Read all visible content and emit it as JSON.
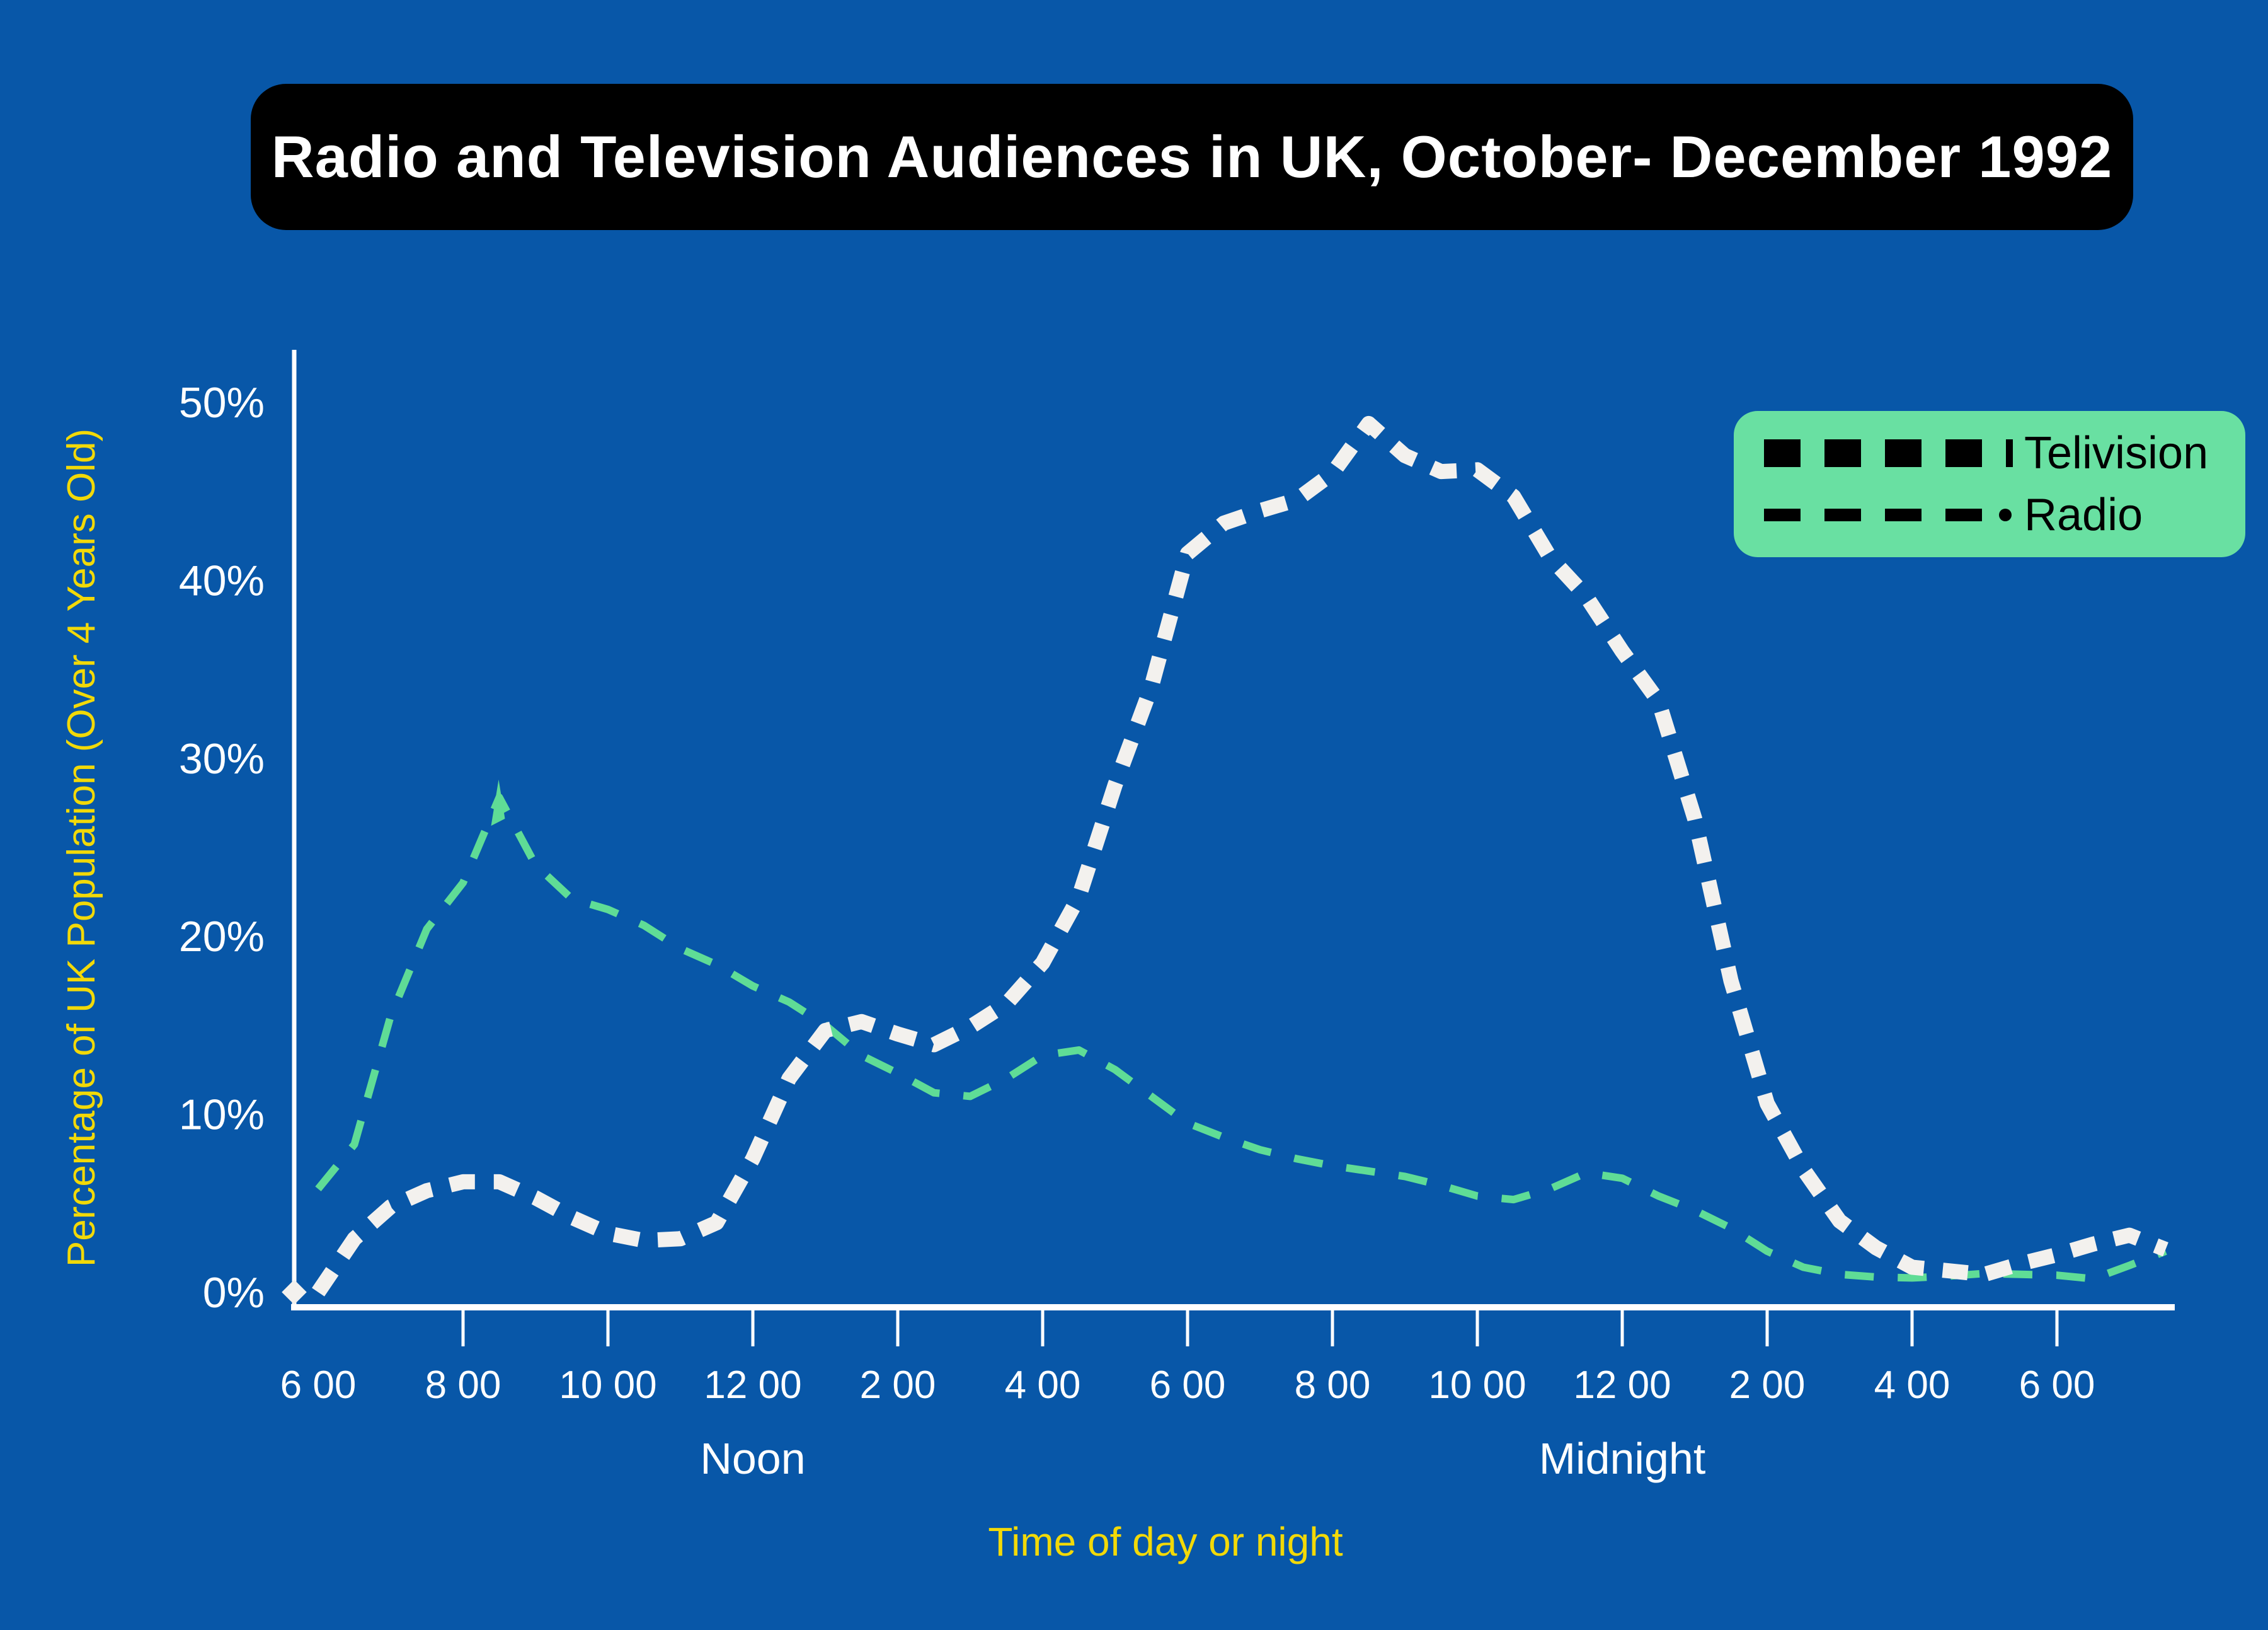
{
  "title": "Radio and Television Audiences in UK, October- December 1992",
  "colors": {
    "background": "#0857A8",
    "title_bar": "#000000",
    "title_text": "#FFFFFF",
    "legend_box": "#69E0A2",
    "legend_text": "#000000",
    "axis": "#FFFFFF",
    "axis_tick_text": "#FFFFFF",
    "axis_title_text": "#F2D908",
    "television_line": "#F3F1EE",
    "radio_line": "#5FDC96"
  },
  "legend": {
    "television_label": "Telivision",
    "radio_label": "Radio"
  },
  "y_axis": {
    "title": "Percentage of UK Population (Over 4 Years Old)",
    "ticks": [
      {
        "label": "50%",
        "value": 50
      },
      {
        "label": "40%",
        "value": 40
      },
      {
        "label": "30%",
        "value": 30
      },
      {
        "label": "20%",
        "value": 20
      },
      {
        "label": "10%",
        "value": 10
      },
      {
        "label": "0%",
        "value": 0
      }
    ]
  },
  "x_axis": {
    "title": "Time of day or night",
    "noon_label": "Noon",
    "midnight_label": "Midnight",
    "tick_labels": [
      "6 00",
      "8 00",
      "10 00",
      "12 00",
      "2 00",
      "4 00",
      "6 00",
      "8 00",
      "10 00",
      "12 00",
      "2 00",
      "4 00",
      "6 00"
    ],
    "tick_hours": [
      6,
      8,
      10,
      12,
      14,
      16,
      18,
      20,
      22,
      24,
      26,
      28,
      30
    ]
  },
  "chart_data": {
    "type": "line",
    "title": "Radio and Television Audiences in UK, October- December 1992",
    "xlabel": "Time of day or night",
    "ylabel": "Percentage of UK Population (Over 4 Years Old)",
    "ylim": [
      0,
      52
    ],
    "x_hours_start_6am_to_next_morning": [
      6,
      6.5,
      7,
      7.5,
      8,
      8.5,
      9,
      9.5,
      10,
      10.5,
      11,
      11.5,
      12,
      12.5,
      13,
      13.5,
      14,
      14.5,
      15,
      15.5,
      16,
      16.5,
      17,
      17.5,
      18,
      18.5,
      19,
      19.5,
      20,
      20.5,
      21,
      21.5,
      22,
      22.5,
      23,
      23.5,
      24,
      24.5,
      25,
      25.5,
      26,
      26.5,
      27,
      27.5,
      28,
      28.5,
      29,
      29.5,
      30,
      30.5,
      31,
      31.5
    ],
    "grid": false,
    "legend_position": "top-right",
    "series": [
      {
        "name": "Telivision",
        "style": "thick-white-dashed",
        "values": [
          0,
          3,
          4.8,
          5.7,
          6.2,
          6.2,
          5.3,
          4.2,
          3.3,
          2.9,
          3,
          3.9,
          7.5,
          12,
          14.7,
          15.2,
          14.5,
          13.9,
          14.9,
          16.2,
          18.5,
          22.2,
          28.5,
          34,
          41.5,
          43.2,
          43.9,
          44.5,
          46,
          48.8,
          47,
          46.1,
          46.2,
          44.7,
          41.3,
          39.1,
          36,
          33.2,
          26.6,
          17.5,
          10.6,
          6.9,
          4,
          2.5,
          1.4,
          1.2,
          1,
          1.6,
          2.1,
          2.7,
          3.2,
          2.4
        ]
      },
      {
        "name": "Radio",
        "style": "thin-green-dashed",
        "values": [
          5.8,
          8.3,
          15.5,
          20.4,
          23,
          27.8,
          24,
          22.1,
          21.5,
          20.6,
          19.3,
          18.4,
          17.2,
          16.3,
          15,
          13.3,
          12.3,
          11.2,
          11,
          12,
          13.3,
          13.6,
          12.5,
          11,
          9.5,
          8.7,
          8,
          7.5,
          7.1,
          6.8,
          6.5,
          6,
          5.4,
          5.2,
          5.8,
          6.7,
          6.4,
          5.4,
          4.6,
          3.6,
          2.3,
          1.4,
          1,
          0.85,
          0.8,
          0.9,
          1.05,
          1,
          0.95,
          0.75,
          1.5,
          2.3
        ]
      }
    ]
  }
}
